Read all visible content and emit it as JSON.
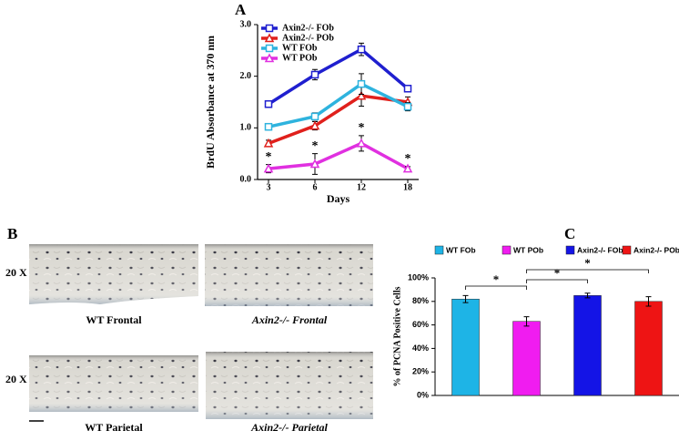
{
  "chart_data": [
    {
      "type": "line",
      "title": "A",
      "x_label": "Days",
      "y_label": "BrdU Absorbance at 370 nm",
      "categories": [
        "3",
        "6",
        "12",
        "18"
      ],
      "ylim": [
        0,
        3
      ],
      "yticks": [
        {
          "value": 0,
          "label": "0.0"
        },
        {
          "value": 1,
          "label": "1.0"
        },
        {
          "value": 2,
          "label": "2.0"
        },
        {
          "value": 3,
          "label": "3.0"
        }
      ],
      "legend": "upper-left",
      "series": [
        {
          "name": "Axin2-/- FOb",
          "color": "#1f1fcf",
          "marker": "square",
          "values": [
            1.46,
            2.03,
            2.52,
            1.76
          ],
          "errors": [
            0.03,
            0.1,
            0.12,
            0.06
          ]
        },
        {
          "name": "Axin2-/- POb",
          "color": "#e0201c",
          "marker": "triangle",
          "values": [
            0.7,
            1.04,
            1.62,
            1.5
          ],
          "errors": [
            0.06,
            0.08,
            0.2,
            0.1
          ]
        },
        {
          "name": "WT FOb",
          "color": "#2eb3de",
          "marker": "square",
          "values": [
            1.02,
            1.22,
            1.85,
            1.41
          ],
          "errors": [
            0.03,
            0.07,
            0.2,
            0.08
          ]
        },
        {
          "name": "WT POb",
          "color": "#e030e0",
          "marker": "triangle",
          "values": [
            0.21,
            0.3,
            0.7,
            0.21
          ],
          "errors": [
            0.08,
            0.2,
            0.15,
            0.04
          ],
          "annotations": [
            "*",
            "*",
            "*",
            "*"
          ]
        }
      ]
    },
    {
      "type": "bar",
      "title": "C",
      "y_label": "% of PCNA Positive Cells",
      "categories": [
        null
      ],
      "ylim": [
        0,
        100
      ],
      "yticks": [
        {
          "value": 0,
          "label": "0%"
        },
        {
          "value": 20,
          "label": "20%"
        },
        {
          "value": 40,
          "label": "40%"
        },
        {
          "value": 60,
          "label": "60%"
        },
        {
          "value": 80,
          "label": "80%"
        },
        {
          "value": 100,
          "label": "100%"
        }
      ],
      "legend": "top",
      "series": [
        {
          "name": "WT FOb",
          "color": "#1eb4e6",
          "values": [
            82
          ],
          "errors": [
            3
          ]
        },
        {
          "name": "WT POb",
          "color": "#f01cf0",
          "values": [
            63
          ],
          "errors": [
            4
          ]
        },
        {
          "name": "Axin2-/- FOb",
          "color": "#1414e6",
          "values": [
            85
          ],
          "errors": [
            2
          ]
        },
        {
          "name": "Axin2-/- POb",
          "color": "#ee1414",
          "values": [
            80
          ],
          "errors": [
            4
          ]
        }
      ],
      "annotations": [
        "*",
        "*",
        "*"
      ]
    }
  ],
  "panel_b": {
    "label": "B",
    "magnification": [
      "20 X",
      "20 X"
    ],
    "captions": [
      "WT Frontal",
      "Axin2-/-  Frontal",
      "WT Parietal",
      "Axin2-/- Parietal"
    ]
  }
}
